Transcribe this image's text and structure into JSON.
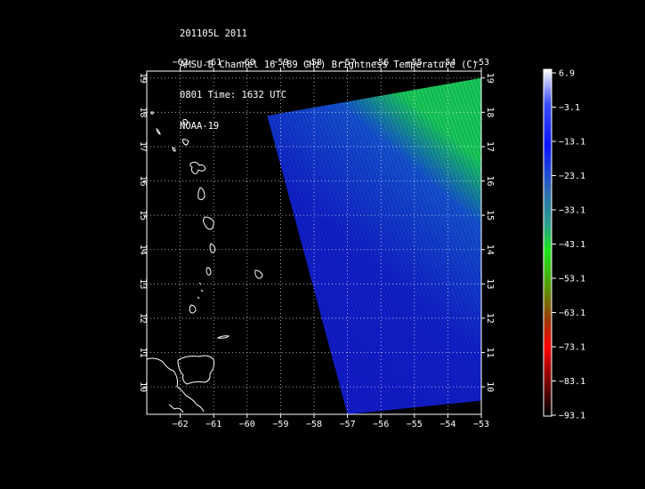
{
  "header": {
    "line1": "201105L 2011",
    "line2": "AMSU-B Channel 16 (89 GHz) Brightness Temperature (C)",
    "line3": "0801 Time: 1632 UTC",
    "line4": "NOAA-19"
  },
  "map": {
    "lon_min": -63,
    "lon_max": -53,
    "lat_min": 9.2,
    "lat_max": 19.2,
    "lon_ticks": [
      -62,
      -61,
      -60,
      -59,
      -58,
      -57,
      -56,
      -55,
      -54,
      -53
    ],
    "lat_ticks": [
      10,
      11,
      12,
      13,
      14,
      15,
      16,
      17,
      18,
      19
    ],
    "grid": "dotted",
    "background": "#000000",
    "coastline_color": "#ffffff"
  },
  "swath": {
    "corners_lonlat": [
      [
        -59.4,
        17.9
      ],
      [
        -53.0,
        19.0
      ],
      [
        -53.0,
        9.6
      ],
      [
        -57.0,
        9.2
      ]
    ],
    "dominant_color": "#1414d2",
    "upper_right_color": "#18d25a"
  },
  "colorbar": {
    "labels": [
      "6.9",
      "-3.1",
      "-13.1",
      "-23.1",
      "-33.1",
      "-43.1",
      "-53.1",
      "-63.1",
      "-73.1",
      "-83.1",
      "-93.1"
    ],
    "colors": [
      "#ffffff",
      "#3a4cff",
      "#0a14ff",
      "#2a6ab4",
      "#2aa088",
      "#1ee61e",
      "#50a000",
      "#9a3a00",
      "#ff0000",
      "#7a0000",
      "#000000"
    ]
  }
}
